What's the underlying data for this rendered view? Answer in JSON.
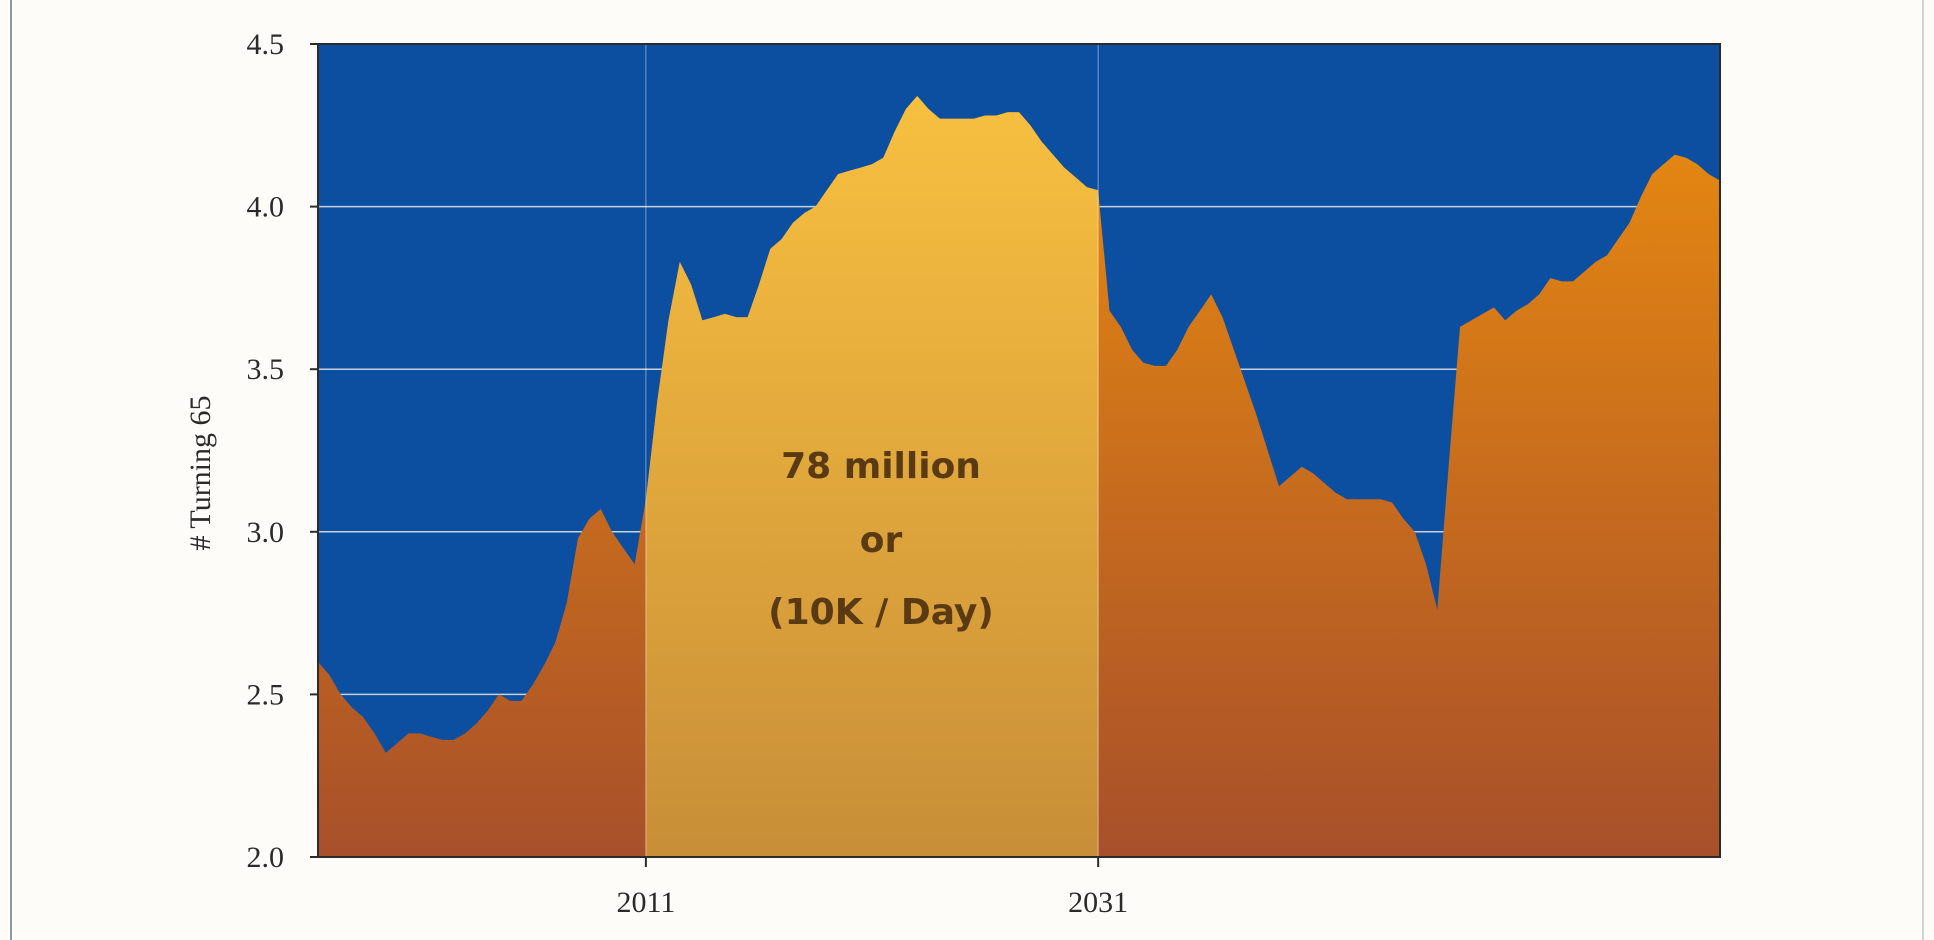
{
  "chart_data": {
    "type": "area",
    "ylabel": "# Turning 65",
    "xlabel": "",
    "ylim": [
      2.0,
      4.5
    ],
    "xlim": [
      1996.5,
      2058.5
    ],
    "yticks": [
      "2.0",
      "2.5",
      "3.0",
      "3.5",
      "4.0",
      "4.5"
    ],
    "xticks": [
      "2011",
      "2031"
    ],
    "grid": "horizontal",
    "highlight_range": [
      2011,
      2031
    ],
    "annotation": [
      "78 million",
      "or",
      "(10K / Day)"
    ],
    "series": [
      {
        "x": [
          1996.5,
          1997.0,
          1997.5,
          1998.0,
          1998.5,
          1999.0,
          1999.5,
          2000.0,
          2000.5,
          2001.0,
          2001.5,
          2002.0,
          2002.5,
          2003.0,
          2003.5,
          2004.0,
          2004.5,
          2005.0,
          2005.5,
          2006.0,
          2006.5,
          2007.0,
          2007.5,
          2008.0,
          2008.5,
          2009.0,
          2009.5,
          2010.0,
          2010.5,
          2011.0,
          2011.5,
          2012.0,
          2012.5,
          2013.0,
          2013.5,
          2014.0,
          2014.5,
          2015.0,
          2015.5,
          2016.0,
          2016.5,
          2017.0,
          2017.5,
          2018.0,
          2018.5,
          2019.0,
          2019.5,
          2020.0,
          2020.5,
          2021.0,
          2021.5,
          2022.0,
          2022.5,
          2023.0,
          2023.5,
          2024.0,
          2024.5,
          2025.0,
          2025.5,
          2026.0,
          2026.5,
          2027.0,
          2027.5,
          2028.0,
          2028.5,
          2029.0,
          2029.5,
          2030.0,
          2030.5,
          2031.0,
          2031.5,
          2032.0,
          2032.5,
          2033.0,
          2033.5,
          2034.0,
          2034.5,
          2035.0,
          2035.5,
          2036.0,
          2036.5,
          2037.0,
          2037.5,
          2038.0,
          2038.5,
          2039.0,
          2039.5,
          2040.0,
          2040.5,
          2041.0,
          2041.5,
          2042.0,
          2042.5,
          2043.0,
          2043.5,
          2044.0,
          2044.5,
          2045.0,
          2045.5,
          2046.0,
          2046.5,
          2047.0,
          2047.5,
          2048.0,
          2048.5,
          2049.0,
          2049.5,
          2050.0,
          2050.5,
          2051.0,
          2051.5,
          2052.0,
          2052.5,
          2053.0,
          2053.5,
          2054.0,
          2054.5,
          2055.0,
          2055.5,
          2056.0,
          2056.5,
          2057.0,
          2057.5,
          2058.0,
          2058.5
        ],
        "values": [
          2.6,
          2.56,
          2.5,
          2.46,
          2.43,
          2.38,
          2.32,
          2.35,
          2.38,
          2.38,
          2.37,
          2.36,
          2.36,
          2.38,
          2.41,
          2.45,
          2.5,
          2.48,
          2.48,
          2.53,
          2.59,
          2.66,
          2.78,
          2.98,
          3.04,
          3.07,
          3.0,
          2.95,
          2.9,
          3.1,
          3.4,
          3.65,
          3.83,
          3.76,
          3.65,
          3.66,
          3.67,
          3.66,
          3.66,
          3.76,
          3.87,
          3.9,
          3.95,
          3.98,
          4.0,
          4.05,
          4.1,
          4.11,
          4.12,
          4.13,
          4.15,
          4.23,
          4.3,
          4.34,
          4.3,
          4.27,
          4.27,
          4.27,
          4.27,
          4.28,
          4.28,
          4.29,
          4.29,
          4.25,
          4.2,
          4.16,
          4.12,
          4.09,
          4.06,
          4.05,
          3.68,
          3.63,
          3.56,
          3.52,
          3.51,
          3.51,
          3.56,
          3.63,
          3.68,
          3.73,
          3.66,
          3.56,
          3.46,
          3.36,
          3.25,
          3.14,
          3.17,
          3.2,
          3.18,
          3.15,
          3.12,
          3.1,
          3.1,
          3.1,
          3.1,
          3.09,
          3.04,
          3.0,
          2.9,
          2.76,
          3.2,
          3.63,
          3.65,
          3.67,
          3.69,
          3.65,
          3.68,
          3.7,
          3.73,
          3.78,
          3.77,
          3.77,
          3.8,
          3.83,
          3.85,
          3.9,
          3.95,
          4.03,
          4.1,
          4.13,
          4.16,
          4.15,
          4.13,
          4.1,
          4.08
        ]
      }
    ]
  },
  "colors": {
    "plot_background": "#0c4fa0",
    "area_top": "#e88a10",
    "area_bottom": "#a8502a",
    "highlight_top": "#f8c040",
    "highlight_bottom": "#c88e38",
    "gridline": "#c9d2dc",
    "annotation_text": "#5a3a12"
  }
}
